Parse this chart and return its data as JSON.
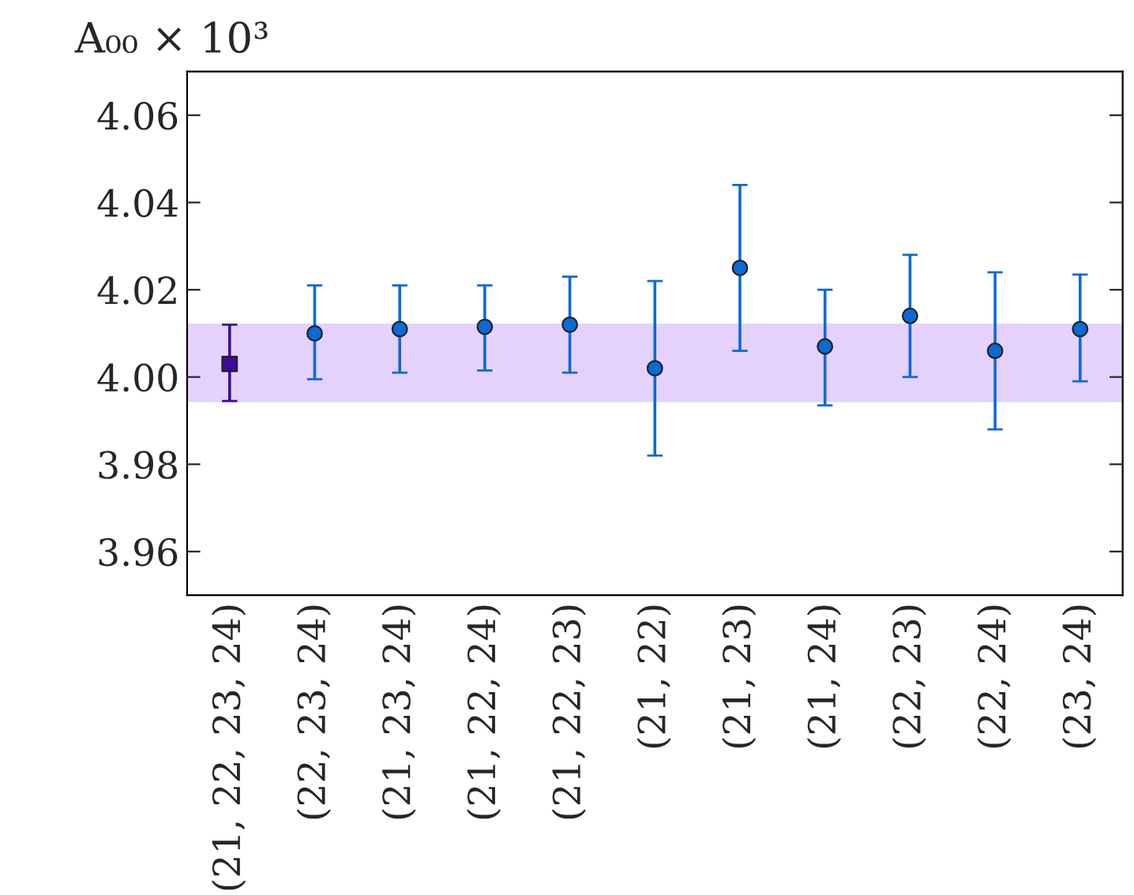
{
  "chart_data": {
    "type": "scatter",
    "ylabel": "A₀₀ × 10³",
    "categories": [
      "(21, 22, 23, 24)",
      "(22, 23, 24)",
      "(21, 23, 24)",
      "(21, 22, 24)",
      "(21, 22, 23)",
      "(21, 22)",
      "(21, 23)",
      "(21, 24)",
      "(22, 23)",
      "(22, 24)",
      "(23, 24)"
    ],
    "series": [
      {
        "color": "#3f0a99",
        "marker": "square",
        "values": [
          4.003,
          null,
          null,
          null,
          null,
          null,
          null,
          null,
          null,
          null,
          null
        ],
        "errors": [
          [
            3.9945,
            4.012
          ],
          null,
          null,
          null,
          null,
          null,
          null,
          null,
          null,
          null,
          null
        ]
      },
      {
        "color": "#0a6ad6",
        "marker": "circle",
        "values": [
          null,
          4.01,
          4.011,
          4.0115,
          4.012,
          4.002,
          4.025,
          4.007,
          4.014,
          4.006,
          4.011
        ],
        "errors": [
          null,
          [
            3.9995,
            4.021
          ],
          [
            4.001,
            4.021
          ],
          [
            4.0015,
            4.021
          ],
          [
            4.001,
            4.023
          ],
          [
            3.982,
            4.022
          ],
          [
            4.006,
            4.044
          ],
          [
            3.9935,
            4.02
          ],
          [
            4.0,
            4.028
          ],
          [
            3.988,
            4.024
          ],
          [
            3.999,
            4.0235
          ]
        ]
      }
    ],
    "bands": [
      {
        "axis": "y",
        "from": 3.9945,
        "to": 4.012,
        "color": "#e5d2fc"
      }
    ],
    "ylim": [
      3.95,
      4.07
    ],
    "yticks": [
      3.96,
      3.98,
      {
        "value": 4.0,
        "label": "4.00"
      },
      4.02,
      4.04,
      4.06
    ],
    "grid": false,
    "legend": false
  }
}
